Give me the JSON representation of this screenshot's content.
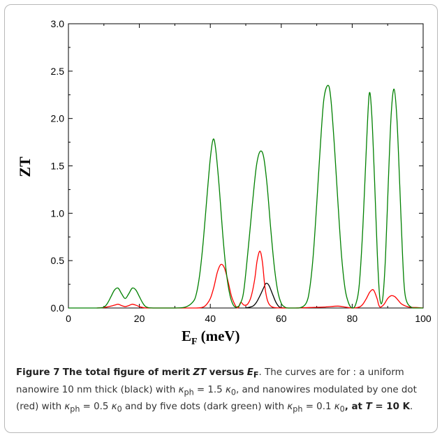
{
  "chart_data": {
    "type": "line",
    "xlabel": "E",
    "xlabel_sub": "F",
    "xlabel_unit": "(meV)",
    "ylabel": "ZT",
    "xlim": [
      0,
      100
    ],
    "ylim": [
      0,
      3.0
    ],
    "x_ticks": [
      "0",
      "20",
      "40",
      "60",
      "80",
      "100"
    ],
    "y_ticks": [
      "0.0",
      "0.5",
      "1.0",
      "1.5",
      "2.0",
      "2.5",
      "3.0"
    ],
    "grid": false,
    "series": [
      {
        "color": "#000000",
        "x": [
          50,
          52,
          53,
          54,
          55,
          55.7,
          56.5,
          57.5,
          58.5,
          59.5,
          61
        ],
        "y": [
          0.0,
          0.02,
          0.06,
          0.13,
          0.21,
          0.26,
          0.24,
          0.15,
          0.06,
          0.01,
          0.0
        ]
      },
      {
        "color": "#ff0000",
        "x": [
          8,
          10,
          12,
          13,
          14,
          15,
          16,
          17,
          18,
          19,
          20,
          21,
          22,
          24,
          30,
          36,
          38,
          39,
          40,
          41,
          42,
          43,
          44,
          45,
          46,
          47,
          47.6,
          48,
          48.6,
          49.5,
          50.5,
          51.5,
          52.5,
          53.2,
          54,
          54.7,
          55.4,
          56.2,
          57.5,
          60,
          64,
          68,
          72,
          76,
          78,
          80,
          82,
          83,
          84,
          85,
          86,
          87,
          87.5,
          88,
          89,
          90,
          91,
          92,
          93,
          94,
          96,
          98,
          100
        ],
        "y": [
          0.0,
          0.005,
          0.02,
          0.03,
          0.04,
          0.025,
          0.015,
          0.025,
          0.04,
          0.03,
          0.015,
          0.005,
          0.0,
          0.0,
          0.0,
          0.0,
          0.01,
          0.04,
          0.1,
          0.22,
          0.38,
          0.46,
          0.42,
          0.28,
          0.12,
          0.03,
          0.0,
          0.01,
          0.06,
          0.03,
          0.04,
          0.12,
          0.3,
          0.5,
          0.6,
          0.48,
          0.22,
          0.07,
          0.01,
          0.0,
          0.0,
          0.005,
          0.01,
          0.02,
          0.01,
          0.0,
          0.01,
          0.04,
          0.1,
          0.17,
          0.19,
          0.1,
          0.03,
          0.01,
          0.04,
          0.1,
          0.13,
          0.12,
          0.08,
          0.04,
          0.01,
          0.005,
          0.0
        ]
      },
      {
        "color": "#008000",
        "x": [
          0,
          8,
          10,
          11,
          12,
          13,
          14,
          15,
          16,
          17,
          18,
          19,
          20,
          21,
          22,
          24,
          30,
          33,
          35,
          36,
          37,
          38,
          39,
          40,
          40.8,
          41.5,
          42.5,
          43.5,
          44.5,
          45.5,
          46.5,
          47.5,
          48.5,
          49.5,
          51,
          52,
          53,
          54,
          55,
          56,
          57,
          58,
          59,
          60,
          61,
          62,
          65,
          67,
          68,
          69,
          70,
          71,
          72,
          73.2,
          74,
          75,
          76,
          77,
          78,
          79,
          80,
          81,
          82,
          83,
          84,
          84.8,
          85.5,
          86.3,
          87.1,
          87.8,
          88.6,
          89.4,
          90.2,
          91,
          91.8,
          92.6,
          93.4,
          94.2,
          95,
          97,
          100
        ],
        "y": [
          0.0,
          0.0,
          0.01,
          0.05,
          0.12,
          0.19,
          0.21,
          0.15,
          0.1,
          0.15,
          0.21,
          0.19,
          0.12,
          0.05,
          0.01,
          0.0,
          0.0,
          0.01,
          0.06,
          0.14,
          0.35,
          0.7,
          1.15,
          1.58,
          1.78,
          1.68,
          1.28,
          0.78,
          0.38,
          0.14,
          0.03,
          0.01,
          0.05,
          0.2,
          0.75,
          1.15,
          1.5,
          1.65,
          1.6,
          1.3,
          0.85,
          0.45,
          0.18,
          0.05,
          0.01,
          0.0,
          0.0,
          0.05,
          0.2,
          0.55,
          1.1,
          1.7,
          2.2,
          2.35,
          2.2,
          1.7,
          1.1,
          0.55,
          0.2,
          0.05,
          0.0,
          0.04,
          0.25,
          0.85,
          1.7,
          2.26,
          2.05,
          1.35,
          0.55,
          0.1,
          0.1,
          0.55,
          1.35,
          2.05,
          2.31,
          2.0,
          1.3,
          0.55,
          0.12,
          0.0,
          0.0
        ]
      }
    ]
  },
  "caption": {
    "label": "Figure 7",
    "title_pre": "The total figure of merit",
    "title_zt": "ZT",
    "title_versus": "versus",
    "title_ef": "E",
    "title_ef_sub": "F",
    "body_1": ". The curves are for : a uniform nanowire 10 nm thick (black) with ",
    "kappa_ph": "κ",
    "kappa_ph_sub": "ph",
    "eq_1": " = 1.5 ",
    "kappa0_sub": "0",
    "body_2": ", and nanowires modulated by one dot (red) with ",
    "eq_2": " = 0.5 ",
    "body_3": " and by five dots (dark green) with ",
    "eq_3": " = 0.1 ",
    "at_text": ", at ",
    "t_var": "T",
    "t_value": " = 10 K",
    "end": "."
  }
}
